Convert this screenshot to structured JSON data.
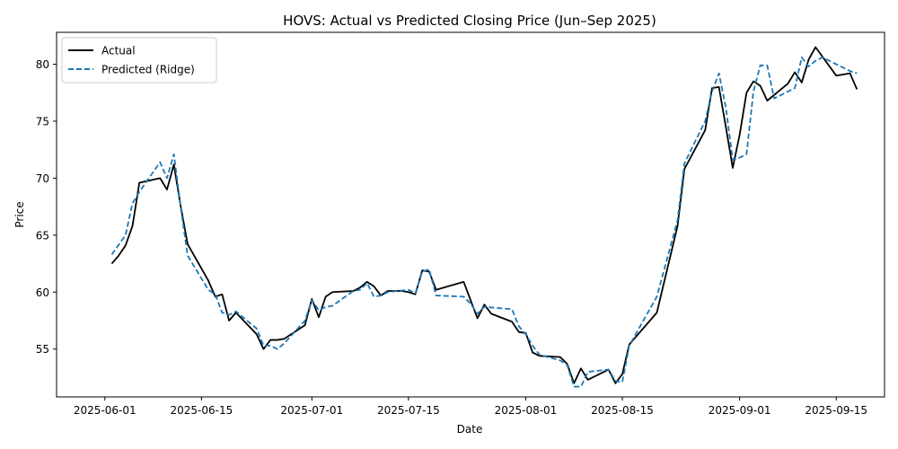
{
  "chart_data": {
    "type": "line",
    "title": "HOVS: Actual vs Predicted Closing Price (Jun–Sep 2025)",
    "xlabel": "Date",
    "ylabel": "Price",
    "xlim": [
      "2025-05-25",
      "2025-09-22"
    ],
    "ylim": [
      50.8,
      82.8
    ],
    "x_ticks": [
      "2025-06-01",
      "2025-06-15",
      "2025-07-01",
      "2025-07-15",
      "2025-08-01",
      "2025-08-15",
      "2025-09-01",
      "2025-09-15"
    ],
    "y_ticks": [
      55,
      60,
      65,
      70,
      75,
      80
    ],
    "grid": false,
    "legend_position": "top-left",
    "series": [
      {
        "name": "Actual",
        "color": "#000000",
        "style": "solid",
        "points": [
          [
            "2025-06-02",
            62.5
          ],
          [
            "2025-06-03",
            63.2
          ],
          [
            "2025-06-04",
            64.1
          ],
          [
            "2025-06-05",
            65.8
          ],
          [
            "2025-06-06",
            69.6
          ],
          [
            "2025-06-09",
            70.0
          ],
          [
            "2025-06-10",
            69.0
          ],
          [
            "2025-06-11",
            71.2
          ],
          [
            "2025-06-12",
            67.5
          ],
          [
            "2025-06-13",
            64.2
          ],
          [
            "2025-06-16",
            61.0
          ],
          [
            "2025-06-17",
            59.6
          ],
          [
            "2025-06-18",
            59.8
          ],
          [
            "2025-06-19",
            57.5
          ],
          [
            "2025-06-20",
            58.2
          ],
          [
            "2025-06-23",
            56.3
          ],
          [
            "2025-06-24",
            55.0
          ],
          [
            "2025-06-25",
            55.8
          ],
          [
            "2025-06-26",
            55.8
          ],
          [
            "2025-06-27",
            55.9
          ],
          [
            "2025-06-30",
            57.1
          ],
          [
            "2025-07-01",
            59.4
          ],
          [
            "2025-07-02",
            57.8
          ],
          [
            "2025-07-03",
            59.6
          ],
          [
            "2025-07-04",
            60.0
          ],
          [
            "2025-07-07",
            60.1
          ],
          [
            "2025-07-08",
            60.4
          ],
          [
            "2025-07-09",
            60.9
          ],
          [
            "2025-07-10",
            60.5
          ],
          [
            "2025-07-11",
            59.7
          ],
          [
            "2025-07-12",
            60.1
          ],
          [
            "2025-07-14",
            60.1
          ],
          [
            "2025-07-15",
            60.0
          ],
          [
            "2025-07-16",
            59.8
          ],
          [
            "2025-07-17",
            61.9
          ],
          [
            "2025-07-18",
            61.8
          ],
          [
            "2025-07-19",
            60.2
          ],
          [
            "2025-07-23",
            60.9
          ],
          [
            "2025-07-24",
            59.3
          ],
          [
            "2025-07-25",
            57.7
          ],
          [
            "2025-07-26",
            58.9
          ],
          [
            "2025-07-27",
            58.1
          ],
          [
            "2025-07-30",
            57.4
          ],
          [
            "2025-07-31",
            56.5
          ],
          [
            "2025-08-01",
            56.4
          ],
          [
            "2025-08-02",
            54.7
          ],
          [
            "2025-08-03",
            54.4
          ],
          [
            "2025-08-06",
            54.3
          ],
          [
            "2025-08-07",
            53.7
          ],
          [
            "2025-08-08",
            52.0
          ],
          [
            "2025-08-09",
            53.3
          ],
          [
            "2025-08-10",
            52.3
          ],
          [
            "2025-08-13",
            53.2
          ],
          [
            "2025-08-14",
            52.0
          ],
          [
            "2025-08-15",
            52.8
          ],
          [
            "2025-08-16",
            55.4
          ],
          [
            "2025-08-20",
            58.2
          ],
          [
            "2025-08-23",
            65.8
          ],
          [
            "2025-08-24",
            70.8
          ],
          [
            "2025-08-27",
            74.2
          ],
          [
            "2025-08-28",
            77.9
          ],
          [
            "2025-08-29",
            78.0
          ],
          [
            "2025-08-30",
            74.5
          ],
          [
            "2025-08-31",
            70.9
          ],
          [
            "2025-09-01",
            73.8
          ],
          [
            "2025-09-02",
            77.5
          ],
          [
            "2025-09-03",
            78.5
          ],
          [
            "2025-09-04",
            78.1
          ],
          [
            "2025-09-05",
            76.8
          ],
          [
            "2025-09-08",
            78.3
          ],
          [
            "2025-09-09",
            79.3
          ],
          [
            "2025-09-10",
            78.4
          ],
          [
            "2025-09-11",
            80.4
          ],
          [
            "2025-09-12",
            81.5
          ],
          [
            "2025-09-15",
            79.0
          ],
          [
            "2025-09-17",
            79.2
          ],
          [
            "2025-09-18",
            77.8
          ]
        ]
      },
      {
        "name": "Predicted (Ridge)",
        "color": "#1f77b4",
        "style": "dashed",
        "points": [
          [
            "2025-06-02",
            63.3
          ],
          [
            "2025-06-04",
            65.0
          ],
          [
            "2025-06-05",
            67.8
          ],
          [
            "2025-06-06",
            68.8
          ],
          [
            "2025-06-09",
            71.4
          ],
          [
            "2025-06-10",
            70.0
          ],
          [
            "2025-06-11",
            72.1
          ],
          [
            "2025-06-12",
            67.4
          ],
          [
            "2025-06-13",
            63.2
          ],
          [
            "2025-06-16",
            60.2
          ],
          [
            "2025-06-17",
            59.8
          ],
          [
            "2025-06-18",
            58.2
          ],
          [
            "2025-06-19",
            58.0
          ],
          [
            "2025-06-20",
            58.3
          ],
          [
            "2025-06-23",
            56.8
          ],
          [
            "2025-06-24",
            55.3
          ],
          [
            "2025-06-25",
            55.3
          ],
          [
            "2025-06-26",
            55.0
          ],
          [
            "2025-06-27",
            55.5
          ],
          [
            "2025-06-30",
            57.5
          ],
          [
            "2025-07-01",
            59.3
          ],
          [
            "2025-07-02",
            58.4
          ],
          [
            "2025-07-03",
            58.7
          ],
          [
            "2025-07-04",
            58.8
          ],
          [
            "2025-07-07",
            60.1
          ],
          [
            "2025-07-08",
            60.2
          ],
          [
            "2025-07-09",
            60.8
          ],
          [
            "2025-07-10",
            59.6
          ],
          [
            "2025-07-11",
            59.7
          ],
          [
            "2025-07-12",
            60.0
          ],
          [
            "2025-07-15",
            60.2
          ],
          [
            "2025-07-16",
            59.9
          ],
          [
            "2025-07-17",
            61.8
          ],
          [
            "2025-07-18",
            62.0
          ],
          [
            "2025-07-19",
            59.7
          ],
          [
            "2025-07-23",
            59.6
          ],
          [
            "2025-07-24",
            59.0
          ],
          [
            "2025-07-25",
            58.1
          ],
          [
            "2025-07-26",
            58.7
          ],
          [
            "2025-07-30",
            58.5
          ],
          [
            "2025-07-31",
            57.0
          ],
          [
            "2025-08-01",
            56.3
          ],
          [
            "2025-08-02",
            55.3
          ],
          [
            "2025-08-03",
            54.5
          ],
          [
            "2025-08-06",
            54.0
          ],
          [
            "2025-08-07",
            53.6
          ],
          [
            "2025-08-08",
            51.7
          ],
          [
            "2025-08-09",
            51.7
          ],
          [
            "2025-08-10",
            53.0
          ],
          [
            "2025-08-13",
            53.2
          ],
          [
            "2025-08-14",
            52.2
          ],
          [
            "2025-08-15",
            52.1
          ],
          [
            "2025-08-16",
            55.3
          ],
          [
            "2025-08-20",
            59.6
          ],
          [
            "2025-08-23",
            66.3
          ],
          [
            "2025-08-24",
            71.3
          ],
          [
            "2025-08-27",
            75.0
          ],
          [
            "2025-08-28",
            77.6
          ],
          [
            "2025-08-29",
            79.2
          ],
          [
            "2025-08-30",
            76.2
          ],
          [
            "2025-08-31",
            71.6
          ],
          [
            "2025-09-01",
            71.8
          ],
          [
            "2025-09-02",
            72.1
          ],
          [
            "2025-09-03",
            77.6
          ],
          [
            "2025-09-04",
            79.9
          ],
          [
            "2025-09-05",
            79.9
          ],
          [
            "2025-09-06",
            77.0
          ],
          [
            "2025-09-09",
            77.9
          ],
          [
            "2025-09-10",
            80.6
          ],
          [
            "2025-09-11",
            79.8
          ],
          [
            "2025-09-12",
            80.3
          ],
          [
            "2025-09-13",
            80.6
          ],
          [
            "2025-09-15",
            80.0
          ],
          [
            "2025-09-17",
            79.4
          ],
          [
            "2025-09-18",
            79.2
          ]
        ]
      }
    ]
  }
}
